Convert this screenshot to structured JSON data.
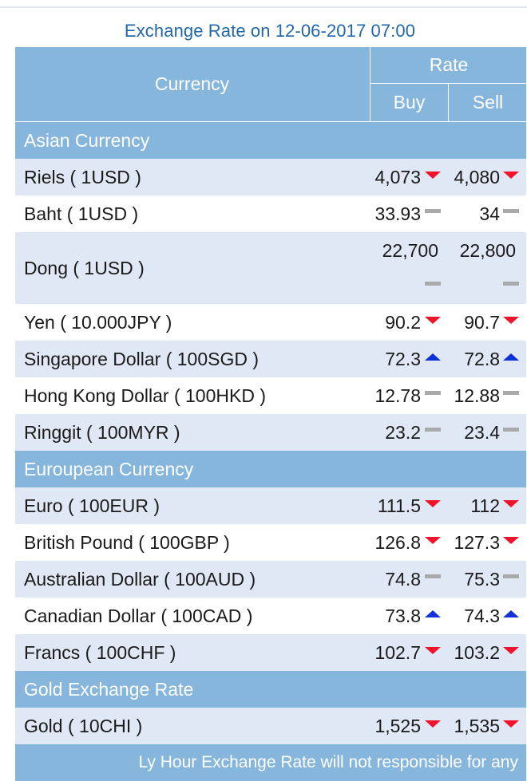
{
  "title": "Exchange Rate on 12-06-2017 07:00",
  "header": {
    "currency": "Currency",
    "rate": "Rate",
    "buy": "Buy",
    "sell": "Sell"
  },
  "sections": {
    "asian": "Asian Currency",
    "european": "Euroupean Currency",
    "gold": "Gold Exchange Rate"
  },
  "rows": [
    {
      "name": "Riels ( 1USD )",
      "buy": "4,073",
      "buy_trend": "down-arrow-icon",
      "sell": "4,080",
      "sell_trend": "down-arrow-icon"
    },
    {
      "name": "Baht ( 1USD )",
      "buy": "33.93",
      "buy_trend": "flat-dash-icon",
      "sell": "34",
      "sell_trend": "flat-dash-icon"
    },
    {
      "name": "Dong ( 1USD )",
      "buy": "22,700",
      "buy_trend": "flat-dash-icon",
      "sell": "22,800",
      "sell_trend": "flat-dash-icon"
    },
    {
      "name": "Yen ( 10.000JPY )",
      "buy": "90.2",
      "buy_trend": "down-arrow-icon",
      "sell": "90.7",
      "sell_trend": "down-arrow-icon"
    },
    {
      "name": "Singapore Dollar ( 100SGD )",
      "buy": "72.3",
      "buy_trend": "up-arrow-icon",
      "sell": "72.8",
      "sell_trend": "up-arrow-icon"
    },
    {
      "name": "Hong Kong Dollar ( 100HKD )",
      "buy": "12.78",
      "buy_trend": "flat-dash-icon",
      "sell": "12.88",
      "sell_trend": "flat-dash-icon"
    },
    {
      "name": "Ringgit ( 100MYR )",
      "buy": "23.2",
      "buy_trend": "flat-dash-icon",
      "sell": "23.4",
      "sell_trend": "flat-dash-icon"
    },
    {
      "name": "Euro ( 100EUR )",
      "buy": "111.5",
      "buy_trend": "down-arrow-icon",
      "sell": "112",
      "sell_trend": "down-arrow-icon"
    },
    {
      "name": "British Pound ( 100GBP )",
      "buy": "126.8",
      "buy_trend": "down-arrow-icon",
      "sell": "127.3",
      "sell_trend": "down-arrow-icon"
    },
    {
      "name": "Australian Dollar ( 100AUD )",
      "buy": "74.8",
      "buy_trend": "flat-dash-icon",
      "sell": "75.3",
      "sell_trend": "flat-dash-icon"
    },
    {
      "name": "Canadian Dollar ( 100CAD )",
      "buy": "73.8",
      "buy_trend": "up-arrow-icon",
      "sell": "74.3",
      "sell_trend": "up-arrow-icon"
    },
    {
      "name": "Francs ( 100CHF )",
      "buy": "102.7",
      "buy_trend": "down-arrow-icon",
      "sell": "103.2",
      "sell_trend": "down-arrow-icon"
    },
    {
      "name": "Gold ( 10CHI )",
      "buy": "1,525",
      "buy_trend": "down-arrow-icon",
      "sell": "1,535",
      "sell_trend": "down-arrow-icon"
    }
  ],
  "footer": "Ly Hour Exchange Rate will not responsible for any",
  "colors": {
    "header_bg": "#87b6dd",
    "title_text": "#2268a8",
    "row_alt": "#dfe8f4",
    "down": "#f2122a",
    "up": "#1030d8",
    "flat": "#a9aaac"
  }
}
